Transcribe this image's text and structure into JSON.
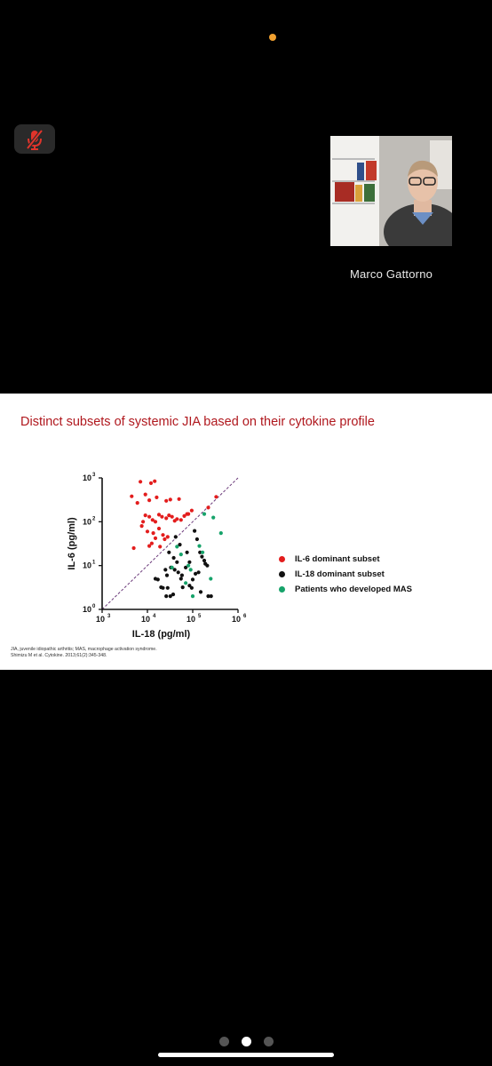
{
  "participant": {
    "name": "Marco Gattorno"
  },
  "slide": {
    "title": "Distinct subsets of systemic JIA based on their cytokine profile",
    "footnote_line1": "JIA, juvenile idiopathic arthritis; MAS, macrophage activation syndrome.",
    "footnote_line2": "Shimizu M et al. Cytokine. 2013;61(2):345-348."
  },
  "colors": {
    "red": "#e31d1d",
    "black": "#111111",
    "green": "#16a36a",
    "title": "#b0181e"
  },
  "pager": {
    "count": 3,
    "active": 1
  },
  "chart_data": {
    "type": "scatter",
    "xlabel": "IL-18 (pg/ml)",
    "ylabel": "IL-6 (pg/ml)",
    "x_scale": "log",
    "y_scale": "log",
    "xlim": [
      1000,
      1000000
    ],
    "ylim": [
      1,
      1000
    ],
    "x_ticks": [
      {
        "value": 1000,
        "base": "10",
        "exp": "3"
      },
      {
        "value": 10000,
        "base": "10",
        "exp": "4"
      },
      {
        "value": 100000,
        "base": "10",
        "exp": "5"
      },
      {
        "value": 1000000,
        "base": "10",
        "exp": "6"
      }
    ],
    "y_ticks": [
      {
        "value": 1,
        "base": "10",
        "exp": "0"
      },
      {
        "value": 10,
        "base": "10",
        "exp": "1"
      },
      {
        "value": 100,
        "base": "10",
        "exp": "2"
      },
      {
        "value": 1000,
        "base": "10",
        "exp": "3"
      }
    ],
    "reference_line": {
      "from": [
        1000,
        1
      ],
      "to": [
        1000000,
        1000
      ],
      "style": "dashed"
    },
    "series": [
      {
        "name": "IL-6 dominant subset",
        "color": "#e31d1d",
        "points": [
          [
            7000,
            820
          ],
          [
            12000,
            760
          ],
          [
            14500,
            840
          ],
          [
            4500,
            380
          ],
          [
            9000,
            420
          ],
          [
            6000,
            270
          ],
          [
            11000,
            310
          ],
          [
            16000,
            360
          ],
          [
            26000,
            300
          ],
          [
            32000,
            320
          ],
          [
            50000,
            330
          ],
          [
            95000,
            180
          ],
          [
            80000,
            150
          ],
          [
            220000,
            210
          ],
          [
            330000,
            370
          ],
          [
            8000,
            100
          ],
          [
            9000,
            140
          ],
          [
            11000,
            130
          ],
          [
            13000,
            110
          ],
          [
            15000,
            100
          ],
          [
            18000,
            145
          ],
          [
            21000,
            130
          ],
          [
            26000,
            120
          ],
          [
            30000,
            140
          ],
          [
            35000,
            130
          ],
          [
            40000,
            105
          ],
          [
            45000,
            115
          ],
          [
            55000,
            110
          ],
          [
            65000,
            135
          ],
          [
            75000,
            150
          ],
          [
            7500,
            80
          ],
          [
            10000,
            60
          ],
          [
            13500,
            55
          ],
          [
            18000,
            70
          ],
          [
            22000,
            50
          ],
          [
            28000,
            45
          ],
          [
            11000,
            28
          ],
          [
            12500,
            32
          ],
          [
            5000,
            25
          ],
          [
            15000,
            42
          ],
          [
            19000,
            27
          ],
          [
            24000,
            40
          ]
        ]
      },
      {
        "name": "IL-18 dominant subset",
        "color": "#111111",
        "points": [
          [
            42000,
            45
          ],
          [
            52000,
            30
          ],
          [
            75000,
            20
          ],
          [
            38000,
            15
          ],
          [
            45000,
            12
          ],
          [
            70000,
            9
          ],
          [
            85000,
            12
          ],
          [
            110000,
            62
          ],
          [
            125000,
            40
          ],
          [
            145000,
            20
          ],
          [
            160000,
            16
          ],
          [
            180000,
            13
          ],
          [
            210000,
            10
          ],
          [
            190000,
            11
          ],
          [
            30000,
            20
          ],
          [
            33000,
            9
          ],
          [
            40000,
            8
          ],
          [
            48000,
            7
          ],
          [
            58000,
            6
          ],
          [
            25000,
            8
          ],
          [
            27000,
            6
          ],
          [
            28000,
            3.1
          ],
          [
            37000,
            2.2
          ],
          [
            15000,
            5
          ],
          [
            17000,
            4.8
          ],
          [
            20000,
            3.2
          ],
          [
            22000,
            3.1
          ],
          [
            26000,
            2.0
          ],
          [
            32000,
            2.0
          ],
          [
            60000,
            3.2
          ],
          [
            95000,
            3.1
          ],
          [
            100000,
            4.8
          ],
          [
            115000,
            6.5
          ],
          [
            135000,
            7.0
          ],
          [
            150000,
            2.5
          ],
          [
            220000,
            2.0
          ],
          [
            255000,
            2.0
          ],
          [
            55000,
            5
          ],
          [
            85000,
            3.5
          ]
        ]
      },
      {
        "name": "Patients who developed MAS",
        "color": "#16a36a",
        "points": [
          [
            180000,
            150
          ],
          [
            285000,
            125
          ],
          [
            420000,
            55
          ],
          [
            45000,
            27
          ],
          [
            55000,
            18
          ],
          [
            80000,
            10
          ],
          [
            90000,
            8
          ],
          [
            140000,
            28
          ],
          [
            250000,
            5
          ],
          [
            35000,
            9
          ],
          [
            70000,
            4
          ],
          [
            100000,
            2.0
          ],
          [
            165000,
            20
          ]
        ]
      }
    ]
  }
}
